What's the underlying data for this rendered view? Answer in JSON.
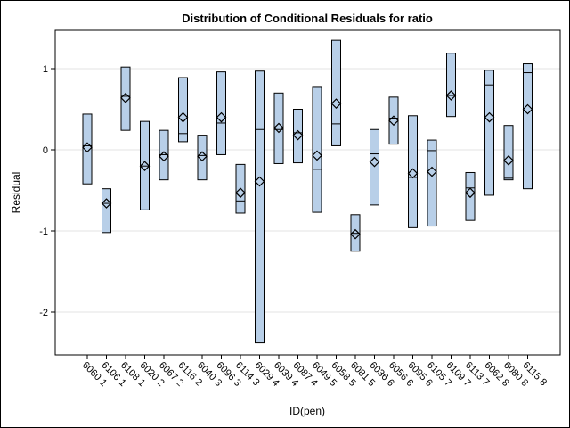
{
  "chart_data": {
    "type": "box",
    "title": "Distribution of Conditional Residuals for ratio",
    "xlabel": "ID(pen)",
    "ylabel": "Residual",
    "ylim": [
      -2.5,
      1.5
    ],
    "yticks": [
      "-2",
      "-1",
      "0",
      "1"
    ],
    "ytick_values": [
      -2,
      -1,
      0,
      1
    ],
    "grid": true,
    "colors": {
      "box_fill": "#b8cfe8",
      "stroke": "#000000",
      "grid": "#e3e3e3"
    },
    "categories": [
      "6060 1",
      "6106 1",
      "6108 1",
      "6020 2",
      "6067 2",
      "6116 2",
      "6040 3",
      "6096 3",
      "6114 3",
      "6029 4",
      "6039 4",
      "6087 4",
      "6049 5",
      "6058 5",
      "6081 5",
      "6036 6",
      "6056 6",
      "6095 6",
      "6105 7",
      "6109 7",
      "6113 7",
      "6062 8",
      "6080 8",
      "6115 8"
    ],
    "boxes": [
      {
        "min": -0.42,
        "median": 0.05,
        "max": 0.44,
        "mean": 0.03
      },
      {
        "min": -1.02,
        "median": -0.66,
        "max": -0.48,
        "mean": -0.66
      },
      {
        "min": 0.24,
        "median": 0.66,
        "max": 1.02,
        "mean": 0.64
      },
      {
        "min": -0.74,
        "median": -0.2,
        "max": 0.35,
        "mean": -0.2
      },
      {
        "min": -0.37,
        "median": -0.06,
        "max": 0.24,
        "mean": -0.08
      },
      {
        "min": 0.1,
        "median": 0.2,
        "max": 0.89,
        "mean": 0.4
      },
      {
        "min": -0.37,
        "median": -0.07,
        "max": 0.18,
        "mean": -0.08
      },
      {
        "min": -0.06,
        "median": 0.33,
        "max": 0.96,
        "mean": 0.4
      },
      {
        "min": -0.78,
        "median": -0.63,
        "max": -0.18,
        "mean": -0.53
      },
      {
        "min": -2.38,
        "median": 0.25,
        "max": 0.97,
        "mean": -0.39
      },
      {
        "min": -0.17,
        "median": 0.25,
        "max": 0.7,
        "mean": 0.27
      },
      {
        "min": -0.16,
        "median": 0.21,
        "max": 0.5,
        "mean": 0.18
      },
      {
        "min": -0.77,
        "median": -0.24,
        "max": 0.77,
        "mean": -0.07
      },
      {
        "min": 0.05,
        "median": 0.32,
        "max": 1.35,
        "mean": 0.57
      },
      {
        "min": -1.25,
        "median": -1.03,
        "max": -0.8,
        "mean": -1.04
      },
      {
        "min": -0.68,
        "median": -0.05,
        "max": 0.25,
        "mean": -0.15
      },
      {
        "min": 0.07,
        "median": 0.39,
        "max": 0.65,
        "mean": 0.36
      },
      {
        "min": -0.96,
        "median": -0.34,
        "max": 0.42,
        "mean": -0.29
      },
      {
        "min": -0.94,
        "median": -0.01,
        "max": 0.12,
        "mean": -0.27
      },
      {
        "min": 0.41,
        "median": 0.67,
        "max": 1.19,
        "mean": 0.67
      },
      {
        "min": -0.87,
        "median": -0.47,
        "max": -0.28,
        "mean": -0.53
      },
      {
        "min": -0.56,
        "median": 0.8,
        "max": 0.98,
        "mean": 0.4
      },
      {
        "min": -0.37,
        "median": -0.35,
        "max": 0.3,
        "mean": -0.13
      },
      {
        "min": -0.48,
        "median": 0.95,
        "max": 1.06,
        "mean": 0.5
      }
    ]
  }
}
